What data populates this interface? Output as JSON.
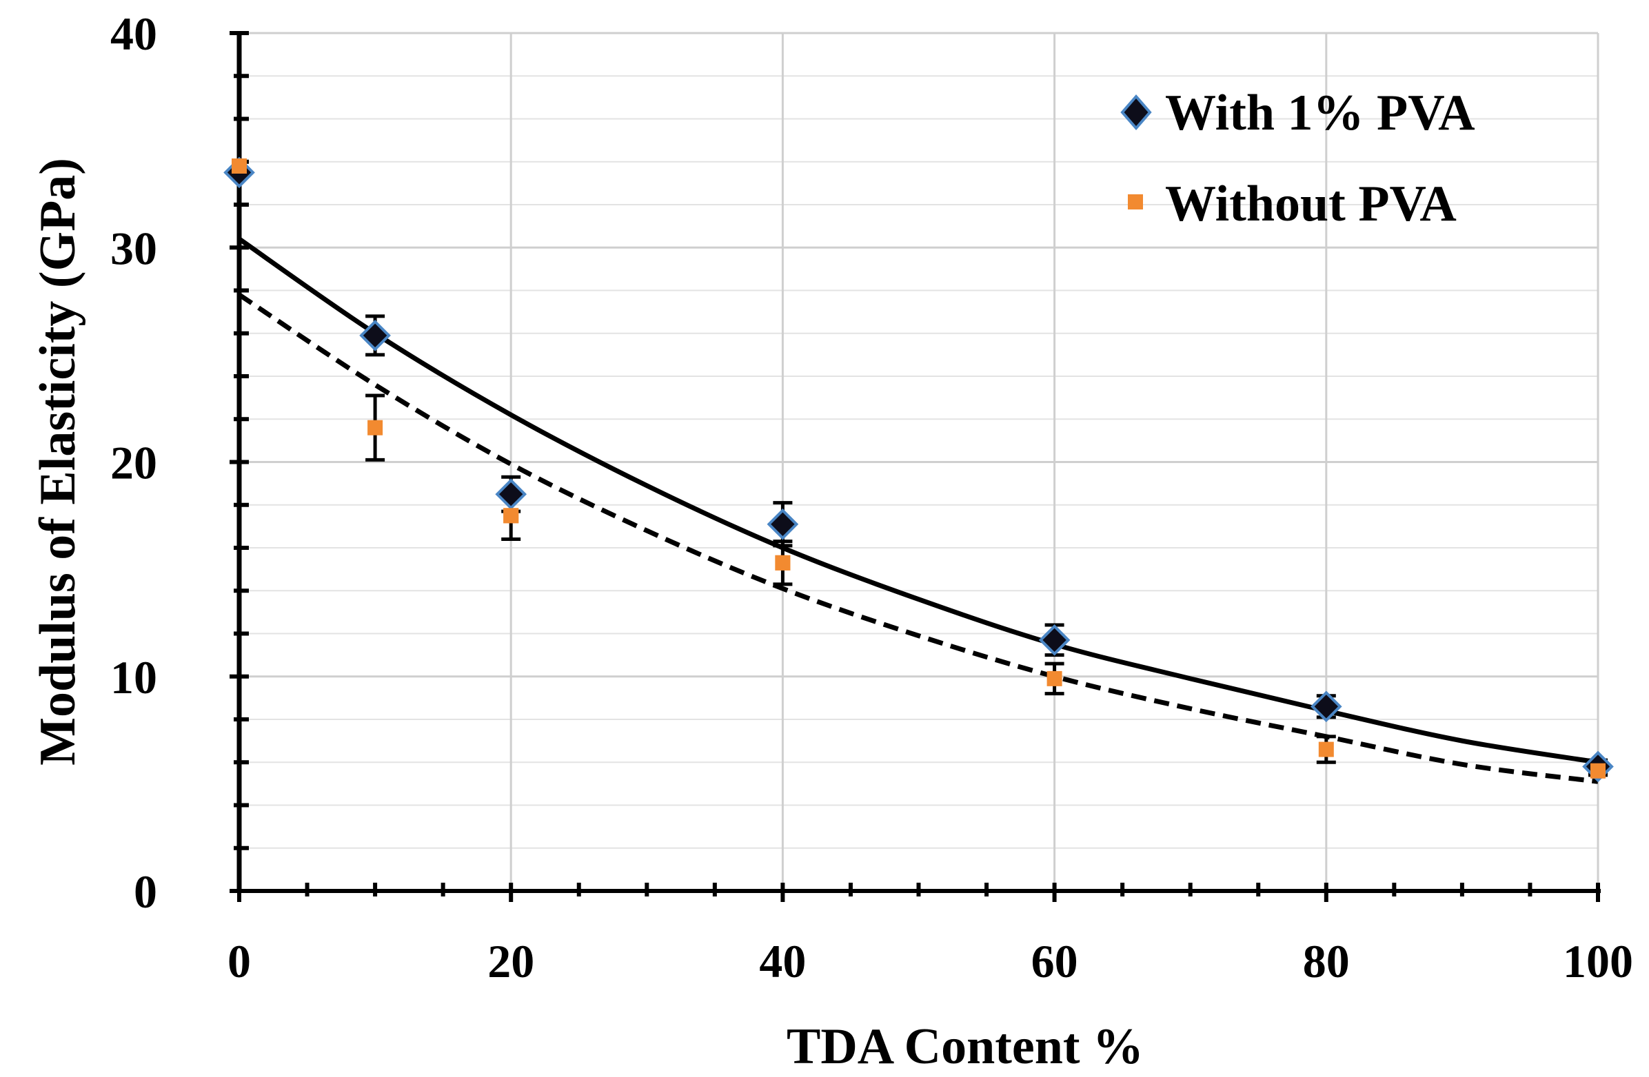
{
  "chart_data": {
    "type": "scatter",
    "title": "",
    "xlabel": "TDA Content %",
    "ylabel": "Modulus of Elasticity (GPa)",
    "xlim": [
      0,
      100
    ],
    "ylim": [
      0,
      40
    ],
    "x_ticks": [
      "0",
      "20",
      "40",
      "60",
      "80",
      "100"
    ],
    "y_ticks": [
      "0",
      "10",
      "20",
      "30",
      "40"
    ],
    "grid": true,
    "legend_position": "top-right",
    "series": [
      {
        "name": "With 1% PVA",
        "marker": "diamond",
        "color": "#0d0d1a",
        "edge_color": "#4a86c5",
        "x": [
          0,
          10,
          20,
          40,
          60,
          80,
          100
        ],
        "y": [
          33.5,
          25.9,
          18.5,
          17.1,
          11.7,
          8.6,
          5.8
        ],
        "error": [
          0,
          0.9,
          0.8,
          1.0,
          0.7,
          0.5,
          0.3
        ],
        "trendline": {
          "style": "solid",
          "x": [
            0,
            10,
            20,
            30,
            40,
            50,
            60,
            70,
            80,
            90,
            100
          ],
          "y": [
            30.4,
            26.0,
            22.2,
            18.9,
            16.0,
            13.6,
            11.5,
            9.9,
            8.4,
            7.0,
            6.0
          ]
        }
      },
      {
        "name": "Without PVA",
        "marker": "square",
        "color": "#f28a30",
        "x": [
          0,
          10,
          20,
          40,
          60,
          80,
          100
        ],
        "y": [
          33.8,
          21.6,
          17.5,
          15.3,
          9.9,
          6.6,
          5.6
        ],
        "error": [
          0,
          1.5,
          1.1,
          1.0,
          0.7,
          0.6,
          0.2
        ],
        "trendline": {
          "style": "dashed",
          "x": [
            0,
            10,
            20,
            30,
            40,
            50,
            60,
            70,
            80,
            90,
            100
          ],
          "y": [
            27.8,
            23.6,
            19.9,
            16.8,
            14.1,
            11.9,
            10.0,
            8.5,
            7.2,
            5.9,
            5.1
          ]
        }
      }
    ]
  }
}
